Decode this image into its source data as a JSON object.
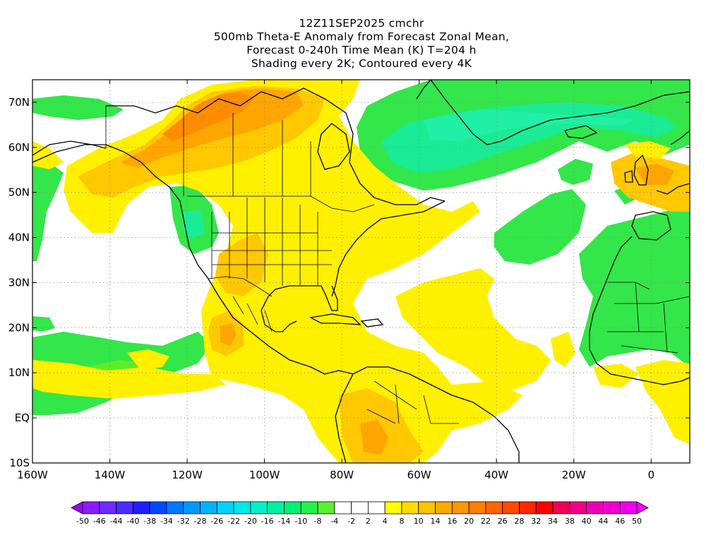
{
  "title": {
    "lines": [
      "12Z11SEP2025 cmchr",
      "500mb Theta-E Anomaly from Forecast Zonal Mean,",
      "Forecast 0-240h Time Mean (K) T=204 h",
      "Shading every 2K; Contoured every 4K"
    ]
  },
  "map": {
    "lon_range": [
      -160,
      10
    ],
    "lat_range": [
      -10,
      75
    ],
    "y_ticks": [
      {
        "lat": 70,
        "label": "70N"
      },
      {
        "lat": 60,
        "label": "60N"
      },
      {
        "lat": 50,
        "label": "50N"
      },
      {
        "lat": 40,
        "label": "40N"
      },
      {
        "lat": 30,
        "label": "30N"
      },
      {
        "lat": 20,
        "label": "20N"
      },
      {
        "lat": 10,
        "label": "10N"
      },
      {
        "lat": 0,
        "label": "EQ"
      },
      {
        "lat": -10,
        "label": "10S"
      }
    ],
    "x_ticks": [
      {
        "lon": -160,
        "label": "160W"
      },
      {
        "lon": -140,
        "label": "140W"
      },
      {
        "lon": -120,
        "label": "120W"
      },
      {
        "lon": -100,
        "label": "100W"
      },
      {
        "lon": -80,
        "label": "80W"
      },
      {
        "lon": -60,
        "label": "60W"
      },
      {
        "lon": -40,
        "label": "40W"
      },
      {
        "lon": -20,
        "label": "20W"
      },
      {
        "lon": 0,
        "label": "0"
      }
    ]
  },
  "colorbar": {
    "labels": [
      "-50",
      "-46",
      "-44",
      "-40",
      "-38",
      "-34",
      "-32",
      "-28",
      "-26",
      "-22",
      "-20",
      "-16",
      "-14",
      "-10",
      "-8",
      "-4",
      "-2",
      "2",
      "4",
      "8",
      "10",
      "14",
      "16",
      "20",
      "22",
      "26",
      "28",
      "32",
      "34",
      "38",
      "40",
      "44",
      "46",
      "50"
    ],
    "colors": [
      "#a000ff",
      "#8a1cff",
      "#6e2cff",
      "#4b2cff",
      "#1f1fff",
      "#0047ff",
      "#0078ff",
      "#0099ff",
      "#00b4ff",
      "#00d2ff",
      "#00e8e8",
      "#00f0c8",
      "#00f0a0",
      "#00f078",
      "#28f050",
      "#58f030",
      "#ffffff",
      "#ffffff",
      "#ffffff",
      "#ffff00",
      "#ffdd00",
      "#ffc400",
      "#ffaa00",
      "#ff9600",
      "#ff8000",
      "#ff6600",
      "#ff4a00",
      "#ff2800",
      "#ff0000",
      "#f0005a",
      "#f0008c",
      "#f000b4",
      "#f000d2",
      "#f000f0",
      "#ff00ff"
    ]
  },
  "colors": {
    "green": "#32e632",
    "light_green": "#5aee2a",
    "teal_green": "#18eb8c",
    "yellow": "#fff000",
    "light_orange": "#ffcc00",
    "orange": "#ffa500",
    "dark_orange": "#ff8c00"
  }
}
